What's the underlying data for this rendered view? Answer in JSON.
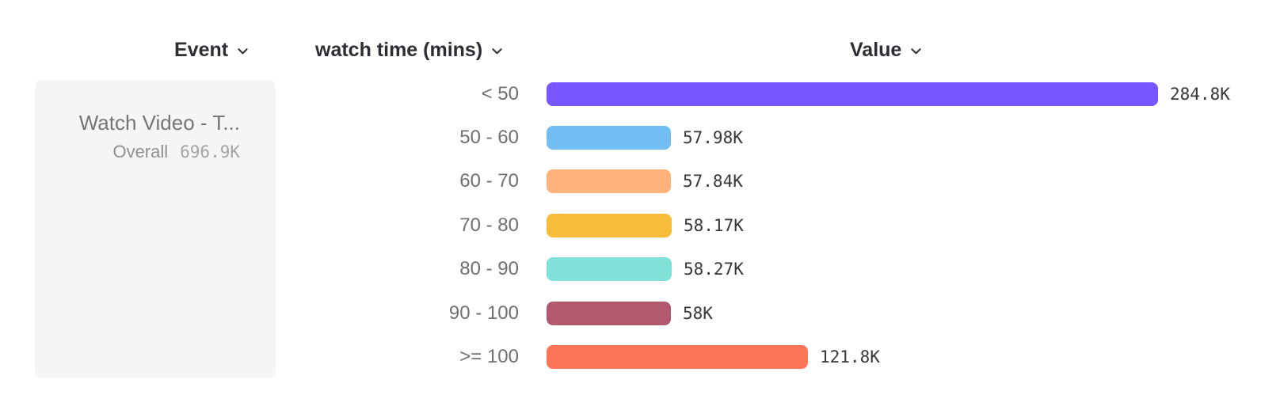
{
  "header": {
    "columns": [
      {
        "label": "Event"
      },
      {
        "label": "watch time (mins)"
      },
      {
        "label": "Value"
      }
    ]
  },
  "event_panel": {
    "title": "Watch Video - T...",
    "overall_label": "Overall",
    "overall_value": "696.9K"
  },
  "chart_data": {
    "type": "bar",
    "orientation": "horizontal",
    "series_label": "watch time (mins)",
    "value_axis_label": "Value",
    "categories": [
      "< 50",
      "50 - 60",
      "60 - 70",
      "70 - 80",
      "80 - 90",
      "90 - 100",
      ">= 100"
    ],
    "values": [
      284800,
      57980,
      57840,
      58170,
      58270,
      58000,
      121800
    ],
    "value_labels": [
      "284.8K",
      "57.98K",
      "57.84K",
      "58.17K",
      "58.27K",
      "58K",
      "121.8K"
    ],
    "overall_total_label": "696.9K",
    "bar_colors": [
      "#7856FF",
      "#72BEF4",
      "#FFB27A",
      "#F8BC3B",
      "#80E1D9",
      "#B2596E",
      "#FF7557"
    ],
    "grid": false,
    "legend_position": "none"
  },
  "colors": {
    "header_text": "#2c2e33",
    "row_label_text": "#6f7073",
    "value_text": "#36373a",
    "panel_background": "#f5f5f6",
    "panel_title_text": "#747579",
    "panel_overall_text": "#8f9095",
    "panel_overall_value_text": "#a3a4a8"
  },
  "icons": {
    "chevron_down": "chevron-down"
  }
}
